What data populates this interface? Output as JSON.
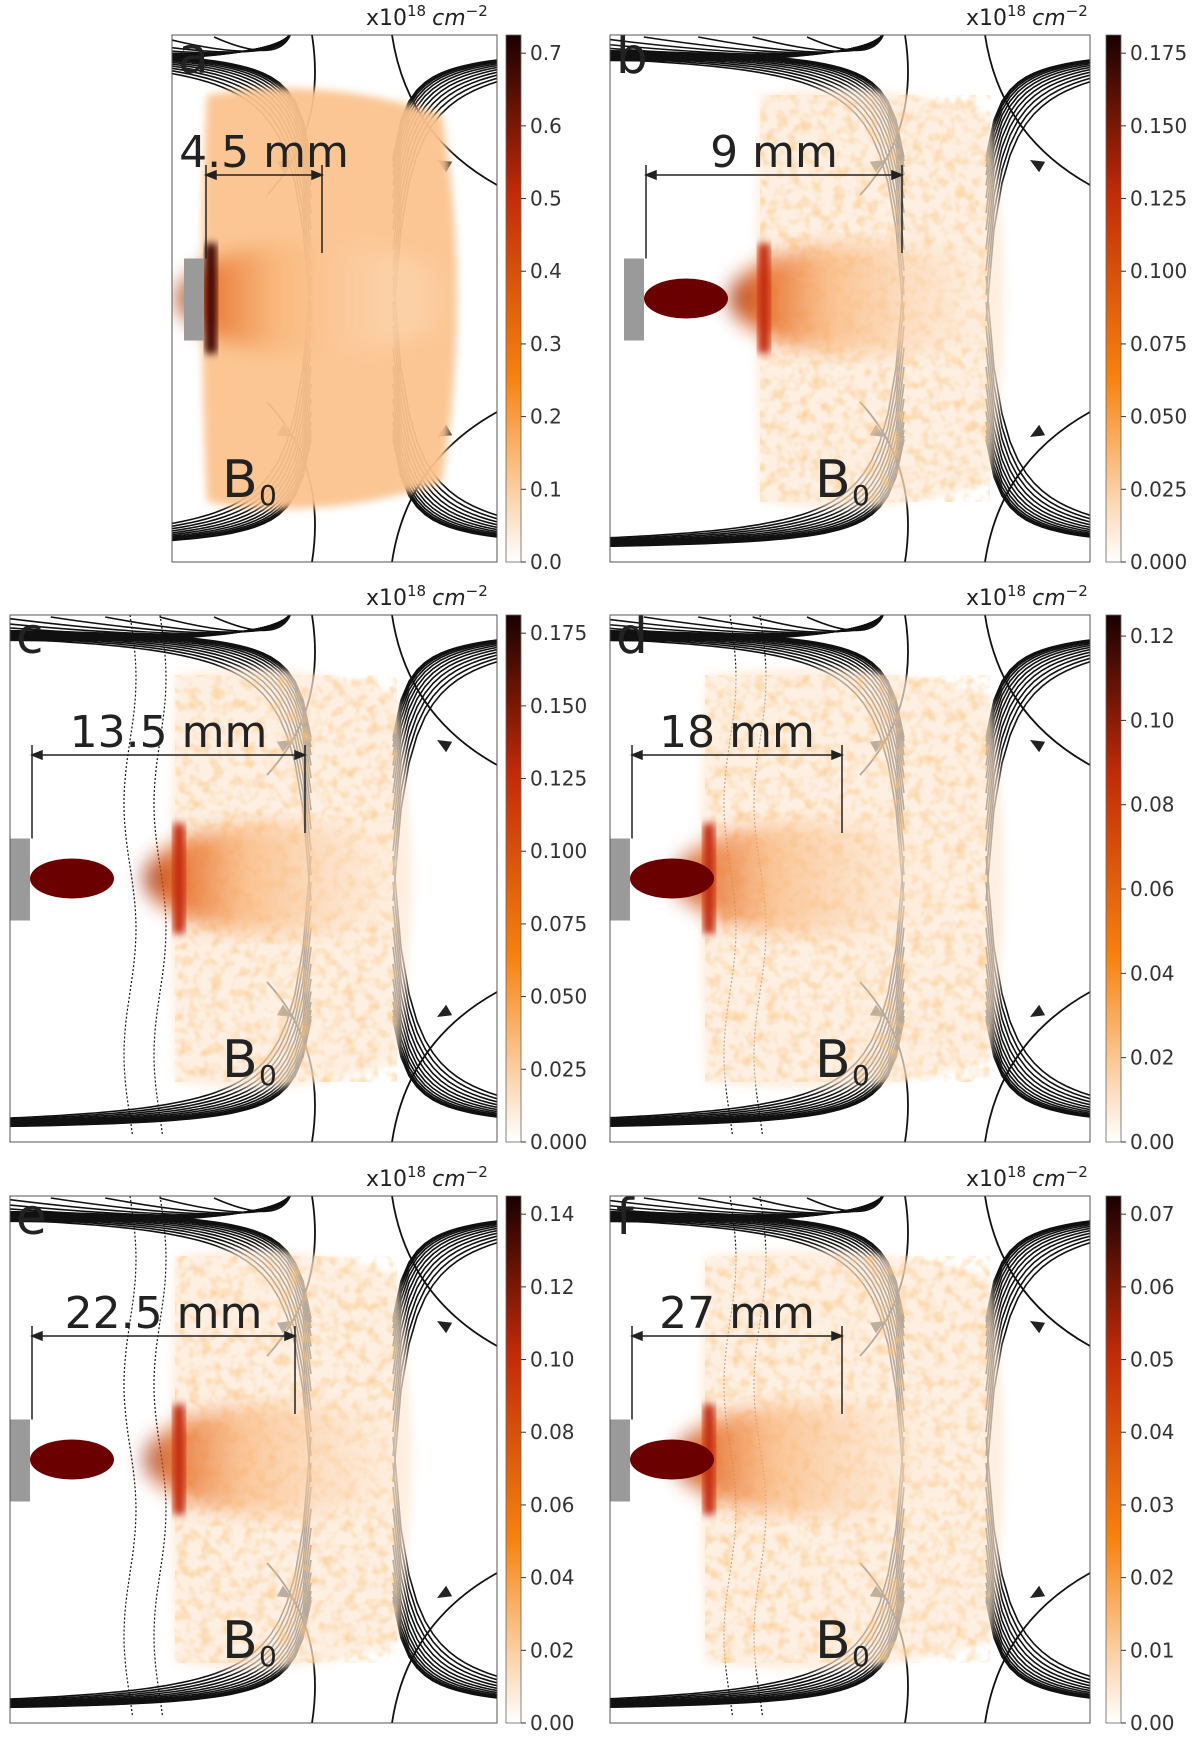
{
  "unit_prefix": "x10",
  "unit_exp": "18",
  "unit_suffix": "cm",
  "unit_suffix_exp": "−2",
  "field_label": "B",
  "field_sub": "0",
  "colors": {
    "dark": "#3a0303",
    "mid": "#c22a08",
    "orange": "#f7820e",
    "light": "#fff3e6",
    "grey": "#9a9a9a",
    "ellipse": "#6a0000"
  },
  "chart_data": [
    {
      "panel": "a",
      "type": "heatmap",
      "distance_label": "4.5 mm",
      "colorbar_ticks": [
        "0.0",
        "0.1",
        "0.2",
        "0.3",
        "0.4",
        "0.5",
        "0.6",
        "0.7"
      ],
      "has_ellipse": false,
      "has_shock_line": false,
      "peak_intensity": 0.45
    },
    {
      "panel": "b",
      "type": "heatmap",
      "distance_label": "9 mm",
      "colorbar_ticks": [
        "0.000",
        "0.025",
        "0.050",
        "0.075",
        "0.100",
        "0.125",
        "0.150",
        "0.175"
      ],
      "has_ellipse": true,
      "has_shock_line": false,
      "peak_intensity": 0.55
    },
    {
      "panel": "c",
      "type": "heatmap",
      "distance_label": "13.5 mm",
      "colorbar_ticks": [
        "0.000",
        "0.025",
        "0.050",
        "0.075",
        "0.100",
        "0.125",
        "0.150",
        "0.175"
      ],
      "has_ellipse": true,
      "has_shock_line": true,
      "peak_intensity": 0.55
    },
    {
      "panel": "d",
      "type": "heatmap",
      "distance_label": "18 mm",
      "colorbar_ticks": [
        "0.00",
        "0.02",
        "0.04",
        "0.06",
        "0.08",
        "0.10",
        "0.12"
      ],
      "has_ellipse": true,
      "has_shock_line": true,
      "peak_intensity": 0.45
    },
    {
      "panel": "e",
      "type": "heatmap",
      "distance_label": "22.5 mm",
      "colorbar_ticks": [
        "0.00",
        "0.02",
        "0.04",
        "0.06",
        "0.08",
        "0.10",
        "0.12",
        "0.14"
      ],
      "has_ellipse": true,
      "has_shock_line": true,
      "peak_intensity": 0.45
    },
    {
      "panel": "f",
      "type": "heatmap",
      "distance_label": "27 mm",
      "colorbar_ticks": [
        "0.00",
        "0.01",
        "0.02",
        "0.03",
        "0.04",
        "0.05",
        "0.06",
        "0.07"
      ],
      "has_ellipse": true,
      "has_shock_line": true,
      "peak_intensity": 0.5
    }
  ]
}
